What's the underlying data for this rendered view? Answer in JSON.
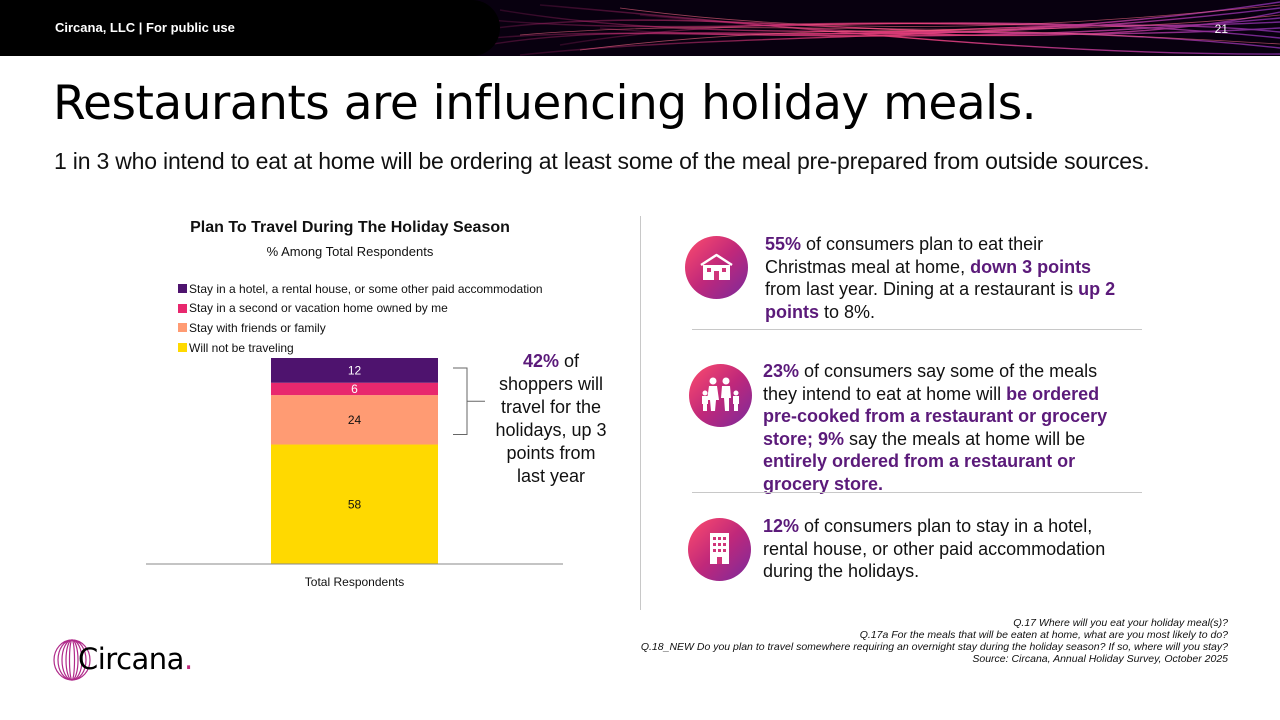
{
  "header": {
    "org": "Circana, LLC |  For public use",
    "page_number": "21"
  },
  "title": "Restaurants are influencing holiday meals.",
  "subtitle": "1 in 3 who intend to eat at home will be ordering at least some of the meal pre-prepared from outside sources.",
  "chart_data": {
    "type": "bar",
    "stacked": true,
    "title": "Plan To Travel During The Holiday Season",
    "subtitle": "% Among Total Respondents",
    "categories": [
      "Total Respondents"
    ],
    "series": [
      {
        "name": "Will not be traveling",
        "values": [
          58
        ],
        "color": "#ffd900"
      },
      {
        "name": "Stay with friends or family",
        "values": [
          24
        ],
        "color": "#ff9b73"
      },
      {
        "name": "Stay in a second or vacation home owned by me",
        "values": [
          6
        ],
        "color": "#e8286e"
      },
      {
        "name": "Stay in a hotel, a rental house, or some other paid accommodation",
        "values": [
          12
        ],
        "color": "#4e136e"
      }
    ],
    "legend_order": [
      3,
      2,
      1,
      0
    ],
    "legend_position": "top-left",
    "grid": false,
    "ylim": [
      0,
      100
    ]
  },
  "callout": {
    "highlight": "42%",
    "text": " of shoppers will travel for the holidays, up 3 points from last year"
  },
  "facts": [
    {
      "icon": "house-icon",
      "parts": [
        {
          "text": "55%",
          "hl": true
        },
        {
          "text": " of consumers plan to eat their Christmas meal at home, ",
          "hl": false
        },
        {
          "text": "down 3 points",
          "hl": true
        },
        {
          "text": " from last year. Dining at a restaurant is ",
          "hl": false
        },
        {
          "text": "up 2 points",
          "hl": true
        },
        {
          "text": " to 8%.",
          "hl": false
        }
      ]
    },
    {
      "icon": "family-icon",
      "parts": [
        {
          "text": "23%",
          "hl": true
        },
        {
          "text": " of consumers say some of the meals they intend to eat at home will ",
          "hl": false
        },
        {
          "text": "be ordered pre-cooked from a restaurant or grocery store; 9%",
          "hl": true
        },
        {
          "text": " say the meals at home will be ",
          "hl": false
        },
        {
          "text": "entirely ordered from a restaurant or grocery store.",
          "hl": true
        }
      ]
    },
    {
      "icon": "hotel-icon",
      "parts": [
        {
          "text": "12%",
          "hl": true
        },
        {
          "text": " of consumers plan to stay in a hotel, rental house, or other paid accommodation during the holidays.",
          "hl": false
        }
      ]
    }
  ],
  "footnotes": [
    "Q.17 Where will you eat your holiday meal(s)?",
    "Q.17a For the meals that will be eaten at home, what are you most likely to do?",
    "Q.18_NEW Do you plan to travel somewhere requiring an overnight stay during the holiday season? If so, where will you stay?",
    "Source: Circana, Annual Holiday Survey, October 2025"
  ],
  "logo": {
    "text": "Circana",
    "dot": "."
  },
  "colors": {
    "accent": "#5b1a7a",
    "brand_pink": "#c0287a"
  }
}
